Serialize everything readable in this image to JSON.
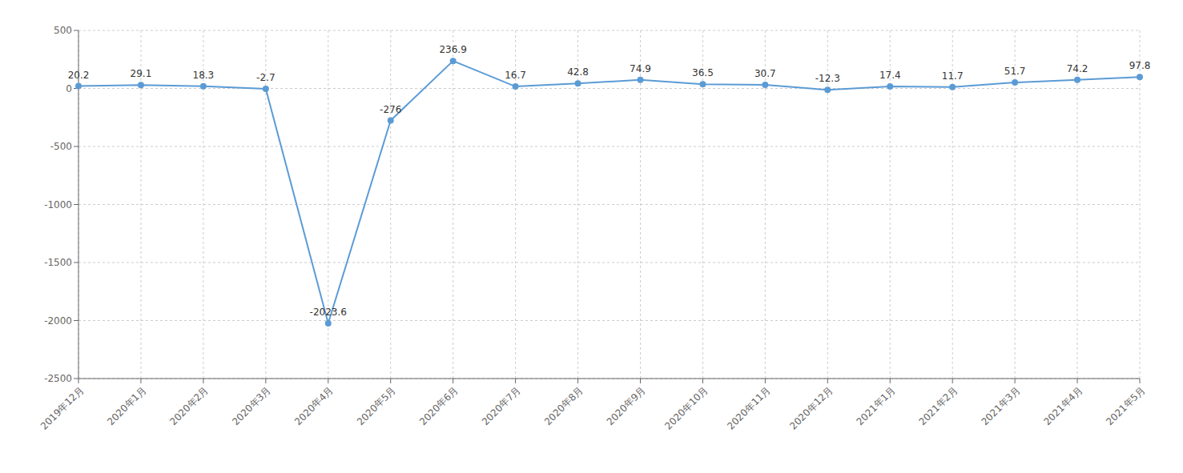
{
  "chart_data": {
    "type": "line",
    "categories": [
      "2019年12月",
      "2020年1月",
      "2020年2月",
      "2020年3月",
      "2020年4月",
      "2020年5月",
      "2020年6月",
      "2020年7月",
      "2020年8月",
      "2020年9月",
      "2020年10月",
      "2020年11月",
      "2020年12月",
      "2021年1月",
      "2021年2月",
      "2021年3月",
      "2021年4月",
      "2021年5月"
    ],
    "values": [
      20.2,
      29.1,
      18.3,
      -2.7,
      -2023.6,
      -276,
      236.9,
      16.7,
      42.8,
      74.9,
      36.5,
      30.7,
      -12.3,
      17.4,
      11.7,
      51.7,
      74.2,
      97.8
    ],
    "color": "#5B9BD5",
    "marker": "circle",
    "ylim": [
      -2500,
      500
    ],
    "yticks": [
      500,
      0,
      -500,
      -1000,
      -1500,
      -2000,
      -2500
    ],
    "grid": true,
    "data_labels": true
  }
}
